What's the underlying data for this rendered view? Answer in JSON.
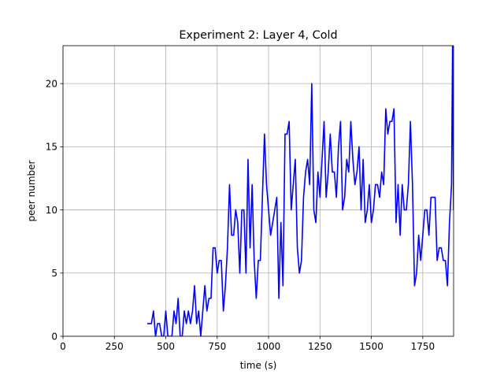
{
  "chart_data": {
    "type": "line",
    "title": "Experiment 2: Layer 4, Cold",
    "xlabel": "time (s)",
    "ylabel": "peer number",
    "xlim": [
      0,
      1900
    ],
    "ylim": [
      0,
      23
    ],
    "grid": true,
    "x_ticks": [
      0,
      250,
      500,
      750,
      1000,
      1250,
      1500,
      1750
    ],
    "x_tick_labels": [
      "0",
      "250",
      "500",
      "750",
      "1000",
      "1250",
      "1500",
      "1750"
    ],
    "y_ticks": [
      0,
      5,
      10,
      15,
      20
    ],
    "y_tick_labels": [
      "0",
      "5",
      "10",
      "15",
      "20"
    ],
    "series": [
      {
        "color": "#0000ff",
        "points": [
          [
            410,
            1
          ],
          [
            430,
            1
          ],
          [
            440,
            2
          ],
          [
            450,
            0
          ],
          [
            460,
            1
          ],
          [
            470,
            1
          ],
          [
            480,
            0
          ],
          [
            490,
            0
          ],
          [
            500,
            2
          ],
          [
            510,
            0
          ],
          [
            520,
            0
          ],
          [
            530,
            0
          ],
          [
            540,
            2
          ],
          [
            550,
            1
          ],
          [
            560,
            3
          ],
          [
            570,
            0
          ],
          [
            580,
            0
          ],
          [
            590,
            2
          ],
          [
            600,
            1
          ],
          [
            610,
            2
          ],
          [
            620,
            1
          ],
          [
            630,
            2
          ],
          [
            640,
            4
          ],
          [
            650,
            1
          ],
          [
            660,
            2
          ],
          [
            670,
            0
          ],
          [
            680,
            2
          ],
          [
            690,
            4
          ],
          [
            700,
            2
          ],
          [
            710,
            3
          ],
          [
            720,
            3
          ],
          [
            730,
            7
          ],
          [
            740,
            7
          ],
          [
            750,
            5
          ],
          [
            760,
            6
          ],
          [
            770,
            6
          ],
          [
            780,
            2
          ],
          [
            790,
            4
          ],
          [
            800,
            7
          ],
          [
            810,
            12
          ],
          [
            820,
            8
          ],
          [
            830,
            8
          ],
          [
            840,
            10
          ],
          [
            850,
            9
          ],
          [
            860,
            5
          ],
          [
            870,
            10
          ],
          [
            880,
            10
          ],
          [
            890,
            5
          ],
          [
            900,
            14
          ],
          [
            910,
            7
          ],
          [
            920,
            12
          ],
          [
            930,
            6
          ],
          [
            940,
            3
          ],
          [
            950,
            6
          ],
          [
            960,
            6
          ],
          [
            970,
            11
          ],
          [
            980,
            16
          ],
          [
            990,
            12
          ],
          [
            1000,
            10
          ],
          [
            1010,
            8
          ],
          [
            1020,
            9
          ],
          [
            1030,
            10
          ],
          [
            1040,
            11
          ],
          [
            1050,
            3
          ],
          [
            1060,
            9
          ],
          [
            1070,
            4
          ],
          [
            1080,
            16
          ],
          [
            1090,
            16
          ],
          [
            1100,
            17
          ],
          [
            1110,
            10
          ],
          [
            1120,
            12
          ],
          [
            1130,
            14
          ],
          [
            1140,
            7
          ],
          [
            1150,
            5
          ],
          [
            1160,
            6
          ],
          [
            1170,
            11
          ],
          [
            1180,
            13
          ],
          [
            1190,
            14
          ],
          [
            1200,
            12
          ],
          [
            1210,
            20
          ],
          [
            1220,
            10
          ],
          [
            1230,
            9
          ],
          [
            1240,
            13
          ],
          [
            1250,
            11
          ],
          [
            1260,
            14
          ],
          [
            1270,
            17
          ],
          [
            1280,
            11
          ],
          [
            1290,
            13
          ],
          [
            1300,
            16
          ],
          [
            1310,
            13
          ],
          [
            1320,
            13
          ],
          [
            1330,
            11
          ],
          [
            1340,
            15
          ],
          [
            1350,
            17
          ],
          [
            1360,
            10
          ],
          [
            1370,
            11
          ],
          [
            1380,
            14
          ],
          [
            1390,
            13
          ],
          [
            1400,
            17
          ],
          [
            1410,
            14
          ],
          [
            1420,
            12
          ],
          [
            1430,
            13
          ],
          [
            1440,
            15
          ],
          [
            1450,
            10
          ],
          [
            1460,
            14
          ],
          [
            1470,
            9
          ],
          [
            1480,
            10
          ],
          [
            1490,
            12
          ],
          [
            1500,
            9
          ],
          [
            1510,
            10
          ],
          [
            1520,
            12
          ],
          [
            1530,
            12
          ],
          [
            1540,
            11
          ],
          [
            1550,
            13
          ],
          [
            1560,
            12
          ],
          [
            1570,
            18
          ],
          [
            1580,
            16
          ],
          [
            1590,
            17
          ],
          [
            1600,
            17
          ],
          [
            1610,
            18
          ],
          [
            1620,
            9
          ],
          [
            1630,
            12
          ],
          [
            1640,
            8
          ],
          [
            1650,
            12
          ],
          [
            1660,
            10
          ],
          [
            1670,
            10
          ],
          [
            1680,
            12
          ],
          [
            1690,
            17
          ],
          [
            1700,
            12
          ],
          [
            1710,
            4
          ],
          [
            1720,
            5
          ],
          [
            1730,
            8
          ],
          [
            1740,
            6
          ],
          [
            1750,
            8
          ],
          [
            1760,
            10
          ],
          [
            1770,
            10
          ],
          [
            1780,
            8
          ],
          [
            1790,
            11
          ],
          [
            1800,
            11
          ],
          [
            1810,
            11
          ],
          [
            1820,
            6
          ],
          [
            1830,
            7
          ],
          [
            1840,
            7
          ],
          [
            1850,
            6
          ],
          [
            1860,
            6
          ],
          [
            1870,
            4
          ],
          [
            1880,
            9
          ],
          [
            1890,
            12
          ],
          [
            1895,
            23
          ],
          [
            1900,
            10
          ]
        ]
      }
    ]
  }
}
